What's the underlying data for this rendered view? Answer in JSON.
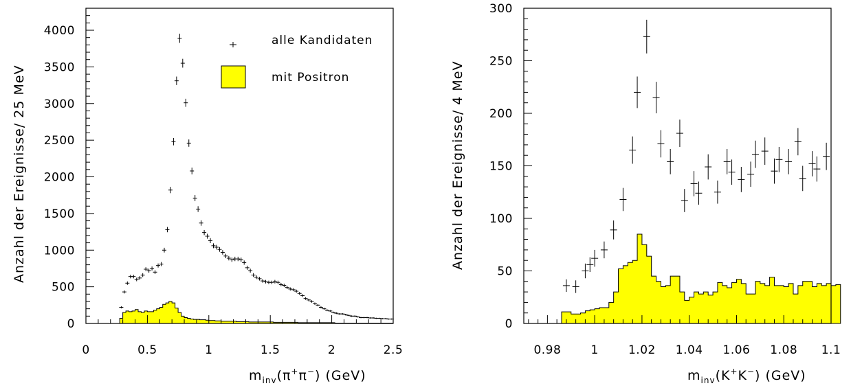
{
  "chart_data": [
    {
      "type": "scatter",
      "title": "",
      "ylabel": "Anzahl der Ereignisse/ 25 MeV",
      "xlabel": {
        "m": "m",
        "sub": "inv",
        "paren_open": "(π",
        "sup1": "+",
        "mid": "π",
        "sup2": "−",
        "rest": ") (GeV)"
      },
      "xlim": [
        0,
        2.5
      ],
      "ylim": [
        0,
        4300
      ],
      "xticks": [
        "0",
        "0.5",
        "1",
        "1.5",
        "2",
        "2.5"
      ],
      "yticks": [
        "0",
        "500",
        "1000",
        "1500",
        "2000",
        "2500",
        "3000",
        "3500",
        "4000"
      ],
      "legend": {
        "placement": "top-right",
        "entries": [
          "alle Kandidaten",
          "mit Positron"
        ]
      },
      "series": [
        {
          "name": "alle Kandidaten",
          "style": "points-with-error-bars",
          "x": [
            0.2875,
            0.3125,
            0.3375,
            0.3625,
            0.3875,
            0.4125,
            0.4375,
            0.4625,
            0.4875,
            0.5125,
            0.5375,
            0.5625,
            0.5875,
            0.6125,
            0.6375,
            0.6625,
            0.6875,
            0.7125,
            0.7375,
            0.7625,
            0.7875,
            0.8125,
            0.8375,
            0.8625,
            0.8875,
            0.9125,
            0.9375,
            0.9625,
            0.9875,
            1.0125,
            1.0375,
            1.0625,
            1.0875,
            1.1125,
            1.1375,
            1.1625,
            1.1875,
            1.2125,
            1.2375,
            1.2625,
            1.2875,
            1.3125,
            1.3375,
            1.3625,
            1.3875,
            1.4125,
            1.4375,
            1.4625,
            1.4875,
            1.5125,
            1.5375,
            1.5625,
            1.5875,
            1.6125,
            1.6375,
            1.6625,
            1.6875,
            1.7125,
            1.7375,
            1.7625,
            1.7875,
            1.8125,
            1.8375,
            1.8625,
            1.8875,
            1.9125,
            1.9375,
            1.9625,
            1.9875,
            2.0125,
            2.0375,
            2.0625,
            2.0875,
            2.1125,
            2.1375,
            2.1625,
            2.1875,
            2.2125,
            2.2375,
            2.2625,
            2.2875,
            2.3125,
            2.3375,
            2.3625,
            2.3875,
            2.4125,
            2.4375,
            2.4625,
            2.4875
          ],
          "y": [
            220,
            430,
            550,
            640,
            640,
            600,
            620,
            660,
            740,
            720,
            750,
            700,
            790,
            810,
            1000,
            1280,
            1820,
            2480,
            3310,
            3890,
            3550,
            3010,
            2460,
            2080,
            1710,
            1560,
            1370,
            1240,
            1190,
            1130,
            1060,
            1040,
            1010,
            970,
            920,
            890,
            870,
            880,
            880,
            870,
            830,
            760,
            720,
            660,
            630,
            610,
            580,
            570,
            560,
            560,
            570,
            560,
            530,
            520,
            490,
            470,
            460,
            440,
            410,
            380,
            340,
            320,
            300,
            270,
            250,
            220,
            200,
            180,
            170,
            150,
            140,
            130,
            130,
            120,
            110,
            100,
            100,
            90,
            80,
            80,
            80,
            75,
            75,
            70,
            70,
            65,
            65,
            60,
            60
          ],
          "yerr": [
            15,
            21,
            23,
            25,
            25,
            24,
            25,
            26,
            27,
            27,
            27,
            26,
            28,
            28,
            32,
            36,
            43,
            50,
            58,
            62,
            60,
            55,
            50,
            46,
            41,
            39,
            37,
            35,
            34,
            34,
            33,
            32,
            32,
            31,
            30,
            30,
            30,
            30,
            30,
            29,
            29,
            28,
            27,
            26,
            25,
            25,
            24,
            24,
            24,
            24,
            24,
            24,
            23,
            23,
            22,
            22,
            21,
            21,
            20,
            19,
            18,
            18,
            17,
            16,
            16,
            15,
            14,
            13,
            13,
            12,
            12,
            11,
            11,
            11,
            10,
            10,
            10,
            9,
            9,
            9,
            9,
            9,
            9,
            8,
            8,
            8,
            8,
            8,
            8
          ]
        },
        {
          "name": "mit Positron",
          "style": "filled-histogram",
          "color": "#ffff00",
          "bin_width": 0.025,
          "bin_start": 0.275,
          "values": [
            70,
            150,
            170,
            160,
            170,
            190,
            160,
            150,
            170,
            160,
            160,
            180,
            200,
            220,
            260,
            280,
            300,
            280,
            210,
            150,
            100,
            80,
            70,
            60,
            55,
            55,
            50,
            50,
            45,
            40,
            40,
            35,
            35,
            30,
            30,
            30,
            30,
            30,
            25,
            25,
            25,
            25,
            20,
            20,
            20,
            20,
            20,
            20,
            20,
            20,
            15,
            15,
            15,
            15,
            15,
            15,
            15,
            15,
            10,
            10,
            10,
            10,
            10,
            10,
            10,
            10,
            10,
            10,
            10,
            10,
            5,
            5,
            5,
            5,
            5,
            5,
            5,
            5,
            5,
            5,
            5,
            5,
            5,
            5,
            5,
            5,
            5,
            5,
            5
          ]
        }
      ]
    },
    {
      "type": "scatter",
      "title": "",
      "ylabel": "Anzahl der Ereignisse/ 4 MeV",
      "xlabel": {
        "m": "m",
        "sub": "inv",
        "paren_open": "(K",
        "sup1": "+",
        "mid": "K",
        "sup2": "−",
        "rest": ") (GeV)"
      },
      "xlim": [
        0.97,
        1.1
      ],
      "ylim": [
        0,
        300
      ],
      "xticks": [
        "0.98",
        "1",
        "1.02",
        "1.04",
        "1.06",
        "1.08",
        "1.1"
      ],
      "yticks": [
        "0",
        "50",
        "100",
        "150",
        "200",
        "250",
        "300"
      ],
      "series": [
        {
          "name": "",
          "style": "points-with-error-bars",
          "x": [
            0.988,
            0.992,
            0.996,
            0.998,
            1.0,
            1.004,
            1.008,
            1.012,
            1.016,
            1.018,
            1.022,
            1.026,
            1.028,
            1.032,
            1.036,
            1.038,
            1.042,
            1.044,
            1.048,
            1.052,
            1.056,
            1.058,
            1.062,
            1.066,
            1.068,
            1.072,
            1.076,
            1.078,
            1.082,
            1.086,
            1.088,
            1.092,
            1.094,
            1.098
          ],
          "y": [
            36,
            35,
            50,
            56,
            62,
            70,
            89,
            118,
            165,
            220,
            273,
            215,
            171,
            154,
            181,
            117,
            133,
            124,
            149,
            125,
            154,
            144,
            137,
            142,
            161,
            164,
            145,
            156,
            154,
            173,
            138,
            152,
            147,
            159
          ],
          "yerr": [
            6,
            6,
            7,
            7,
            8,
            8,
            9,
            11,
            13,
            15,
            16,
            15,
            13,
            12,
            13,
            11,
            12,
            11,
            12,
            11,
            12,
            12,
            12,
            12,
            13,
            13,
            12,
            12,
            12,
            13,
            12,
            12,
            12,
            13
          ]
        },
        {
          "name": "",
          "style": "filled-histogram",
          "color": "#ffff00",
          "bin_width": 0.002,
          "bin_start": 0.986,
          "values": [
            11,
            11,
            9,
            9,
            10,
            12,
            13,
            14,
            15,
            15,
            20,
            30,
            52,
            55,
            58,
            60,
            85,
            75,
            64,
            45,
            40,
            35,
            36,
            45,
            45,
            30,
            22,
            25,
            30,
            28,
            30,
            27,
            30,
            39,
            36,
            34,
            39,
            42,
            38,
            28,
            28,
            40,
            38,
            36,
            44,
            36,
            36,
            35,
            38,
            28,
            36,
            40,
            40,
            35,
            38,
            36,
            38,
            36,
            37
          ]
        }
      ]
    }
  ]
}
